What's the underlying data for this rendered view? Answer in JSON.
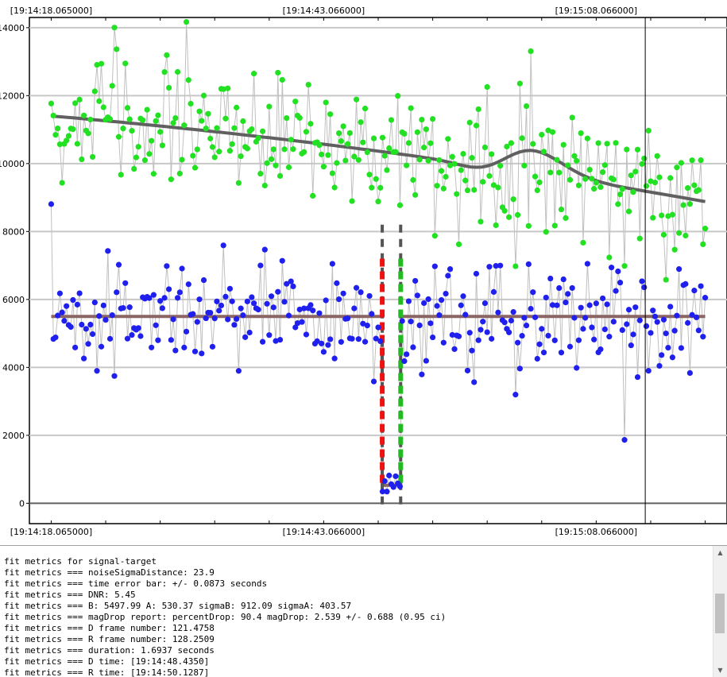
{
  "chart_data": {
    "type": "scatter",
    "top_tick_labels": [
      "[19:14:18.065000]",
      "[19:14:43.066000]",
      "[19:15:08.066000]"
    ],
    "bottom_tick_labels": [
      "[19:14:18.065000]",
      "[19:14:43.066000]",
      "[19:15:08.066000]"
    ],
    "x_unit": "seconds after 19:14:18.065000",
    "xlim": [
      -2.0,
      62.0
    ],
    "ylim": [
      -600,
      14300
    ],
    "y_ticks": [
      0,
      2000,
      4000,
      6000,
      8000,
      10000,
      12000,
      14000
    ],
    "grid_y": true,
    "cursor_x": 54.5,
    "series": [
      {
        "key": "target",
        "color": "#2020ee"
      },
      {
        "key": "reference",
        "color": "#22e022"
      }
    ],
    "baseline": {
      "value": 5498,
      "color": "#8b6464"
    },
    "event_bottom_value": 530,
    "reference_fit": {
      "color": "#606060"
    },
    "d_edge": {
      "x": 30.37,
      "color": "#ee1111"
    },
    "r_edge": {
      "x": 32.06,
      "color": "#22bb22"
    },
    "edge_guide_color": "#555555"
  },
  "log": {
    "lines": [
      "fit metrics for signal-target",
      "fit metrics === noiseSigmaDistance: 23.9",
      "fit metrics === time error bar: +/- 0.0873 seconds",
      "fit metrics === DNR: 5.45",
      "fit metrics === B: 5497.99 A: 530.37 sigmaB: 912.09 sigmaA: 403.57",
      "fit metrics === magDrop report: percentDrop: 90.4 magDrop: 2.539 +/- 0.688 (0.95 ci)",
      "fit metrics === D frame number: 121.4758",
      "fit metrics === R frame number: 128.2509",
      "fit metrics === duration: 1.6937 seconds",
      "fit metrics === D time: [19:14:48.4350]",
      "fit metrics === R time: [19:14:50.1287]"
    ]
  }
}
